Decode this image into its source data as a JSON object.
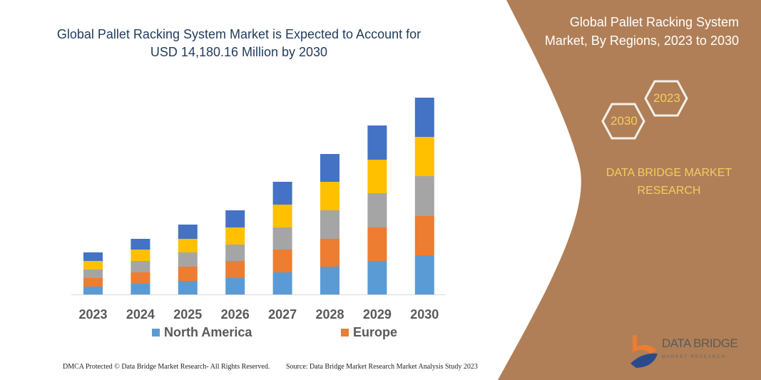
{
  "header": {
    "title": "Global Pallet Racking System Market is Expected to Account for USD 14,180.16 Million by 2030"
  },
  "side_panel": {
    "title": "Global Pallet Racking System Market, By Regions, 2023 to 2030",
    "hex_start": "2023",
    "hex_end": "2030",
    "brand": "DATA BRIDGE MARKET RESEARCH",
    "logo_text": "DATA BRIDGE",
    "logo_sub": "MARKET RESEARCH",
    "bg_color": "#B07F57",
    "accent_color": "#F5CD60"
  },
  "footer": {
    "left": "DMCA Protected © Data Bridge Market Research-  All Rights Reserved.",
    "right": "Source: Data Bridge Market Research  Market Analysis Study 2023"
  },
  "chart_data": {
    "type": "bar",
    "stacked": true,
    "categories": [
      "2023",
      "2024",
      "2025",
      "2026",
      "2027",
      "2028",
      "2029",
      "2030"
    ],
    "series": [
      {
        "name": "North America",
        "color": "#5B9BD5",
        "values": [
          11,
          15,
          19,
          23,
          31,
          39,
          47,
          55
        ]
      },
      {
        "name": "Europe",
        "color": "#ED7D31",
        "values": [
          12,
          16,
          20,
          24,
          32,
          39,
          47,
          55
        ]
      },
      {
        "color": "#A5A5A5",
        "values": [
          12,
          16,
          20,
          23,
          31,
          40,
          48,
          56
        ]
      },
      {
        "color": "#FFC000",
        "values": [
          12,
          16,
          19,
          24,
          32,
          40,
          47,
          55
        ]
      },
      {
        "color": "#4472C4",
        "values": [
          12,
          15,
          20,
          24,
          32,
          39,
          48,
          55
        ]
      }
    ],
    "legend": [
      "North America",
      "Europe"
    ],
    "legend_position": "bottom",
    "y_axis_visible": false,
    "grid": false
  }
}
